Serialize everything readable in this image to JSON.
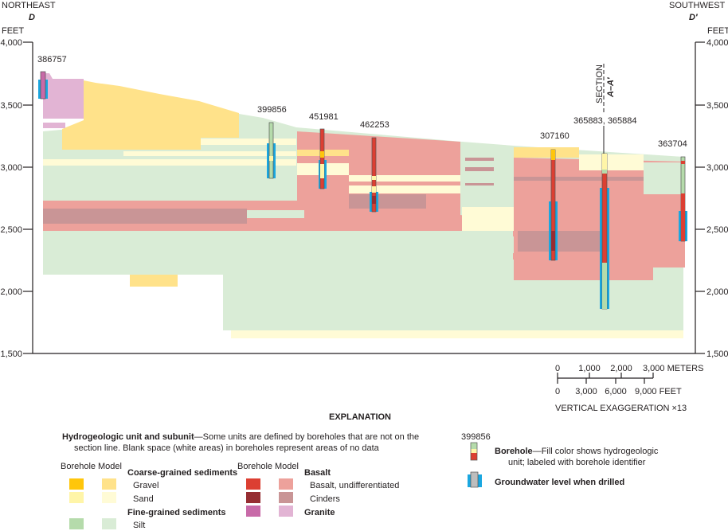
{
  "directions": {
    "left": "NORTHEAST",
    "left_letter": "D",
    "right": "SOUTHWEST",
    "right_letter": "D′"
  },
  "axis": {
    "unit": "FEET",
    "ticks": [
      "4,000",
      "3,500",
      "3,000",
      "2,500",
      "2,000",
      "1,500"
    ]
  },
  "section_marker": {
    "label": "SECTION",
    "id": "A–A′"
  },
  "boreholes": [
    "386757",
    "399856",
    "451981",
    "462253",
    "307160",
    "365883, 365884",
    "363704"
  ],
  "scale": {
    "meters": [
      "0",
      "1,000",
      "2,000",
      "3,000 METERS"
    ],
    "feet": [
      "0",
      "3,000",
      "6,000",
      "9,000 FEET"
    ],
    "vertical_exaggeration": "VERTICAL EXAGGERATION ×13"
  },
  "explanation": {
    "title": "EXPLANATION",
    "unit_heading": "Hydrogeologic unit and subunit",
    "unit_note_1": "—Some units are defined by boreholes that are not on the",
    "unit_note_2": "section line. Blank space (white areas) in boreholes represent areas of no data",
    "col_borehole": "Borehole",
    "col_model": "Model",
    "coarse": "Coarse-grained sediments",
    "gravel": "Gravel",
    "sand": "Sand",
    "fine": "Fine-grained sediments",
    "silt": "Silt",
    "basalt": "Basalt",
    "basalt_undiff": "Basalt, undifferentiated",
    "cinders": "Cinders",
    "granite": "Granite",
    "borehole_example_id": "399856",
    "borehole_heading": "Borehole",
    "borehole_note_1": "—Fill color shows hydrogeologic",
    "borehole_note_2": "unit; labeled with borehole identifier",
    "groundwater": "Groundwater level when drilled"
  },
  "colors": {
    "gravel_borehole": "#ffc60b",
    "gravel_model": "#ffe28a",
    "sand_borehole": "#fff5a8",
    "sand_model": "#fffbd6",
    "silt_borehole": "#b5dbab",
    "silt_model": "#d9ecd6",
    "basalt_borehole": "#dc3f32",
    "basalt_model": "#eda19b",
    "cinders_borehole": "#962d32",
    "cinders_model": "#c99596",
    "granite_borehole": "#c86aa8",
    "granite_model": "#e2b4d4",
    "groundwater": "#1aa7e0"
  }
}
